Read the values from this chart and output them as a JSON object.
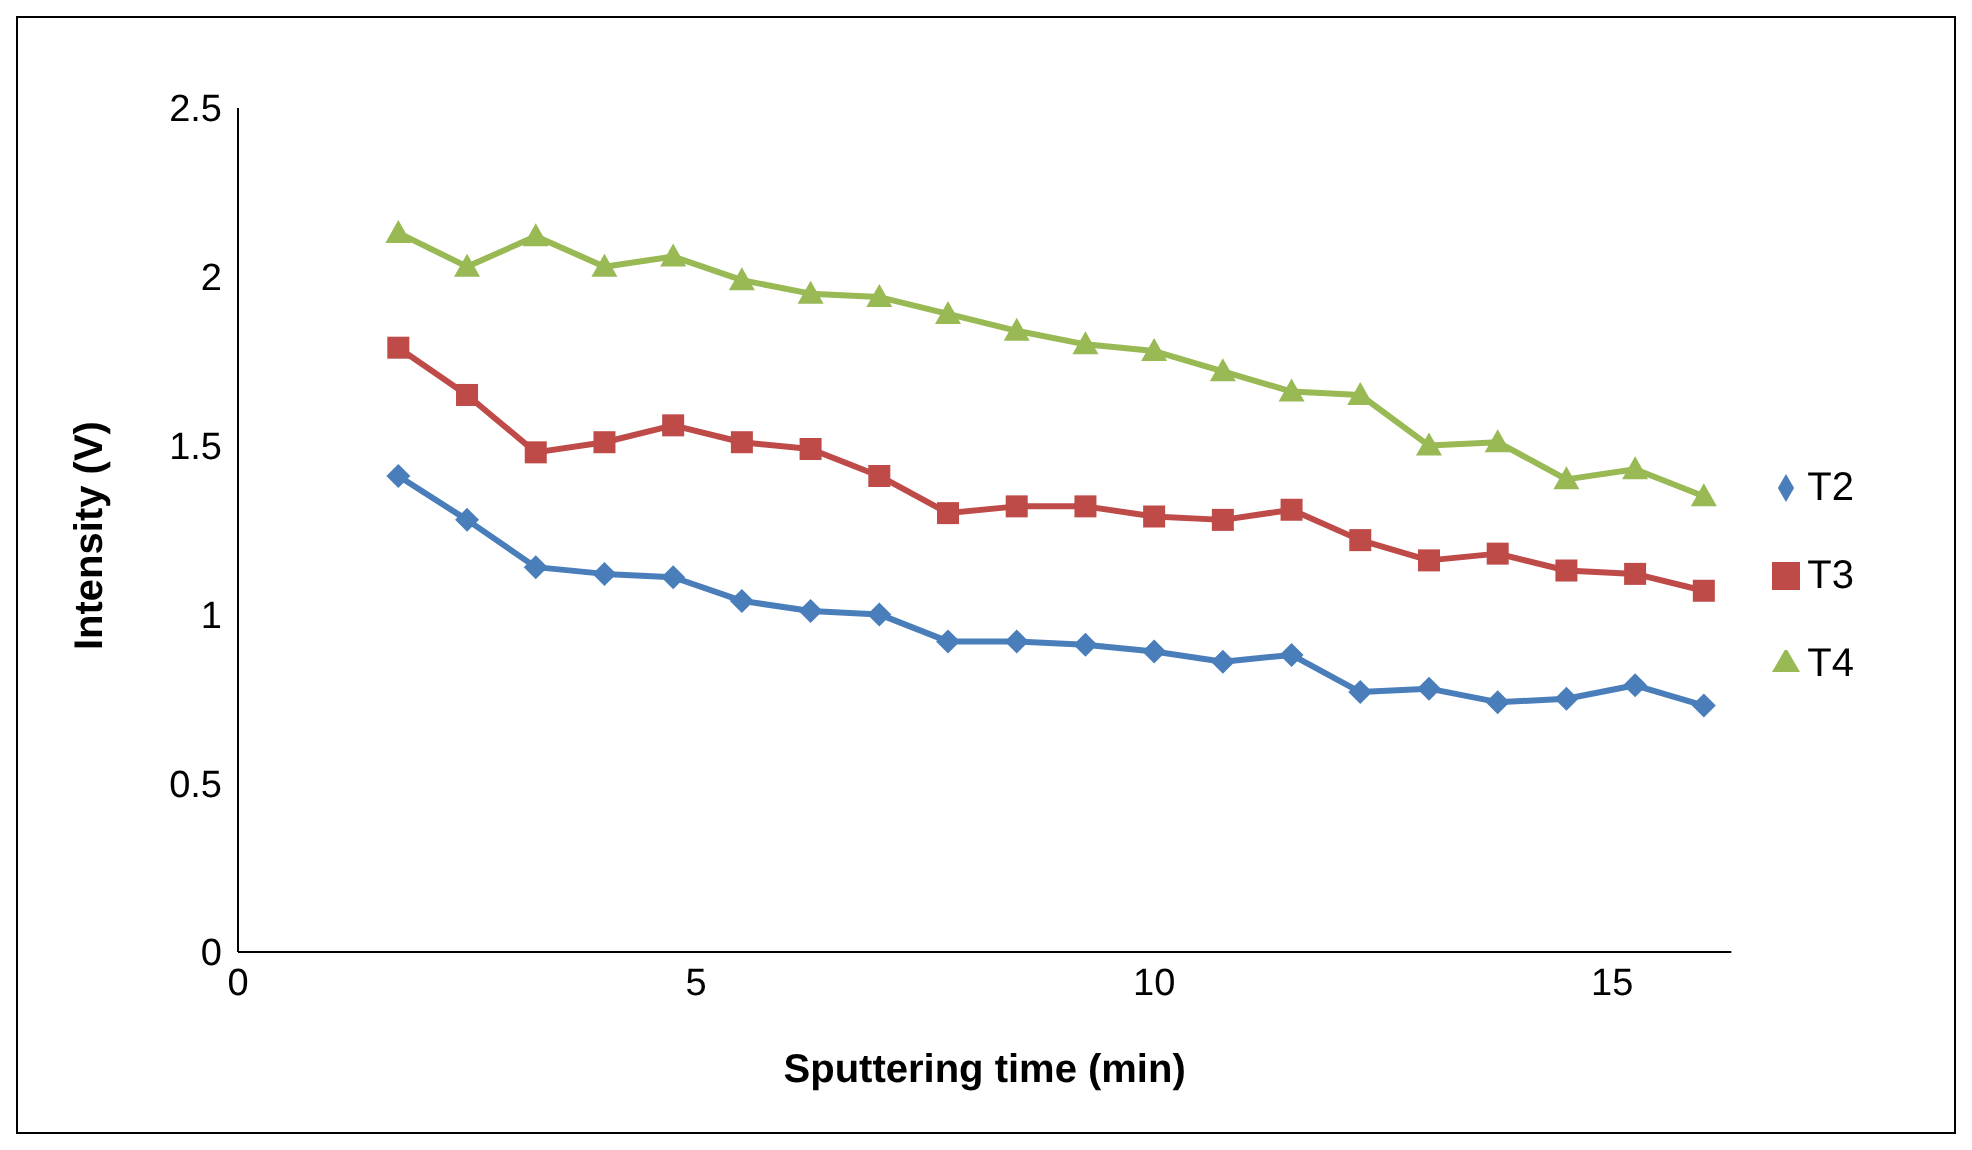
{
  "chart_data": {
    "type": "line",
    "xlabel": "Sputtering time (min)",
    "ylabel": "Intensity (V)",
    "x": [
      1.75,
      2.5,
      3.25,
      4,
      4.75,
      5.5,
      6.25,
      7,
      7.75,
      8.5,
      9.25,
      10,
      10.75,
      11.5,
      12.25,
      13,
      13.75,
      14.5,
      15.25,
      16
    ],
    "series": [
      {
        "name": "T2",
        "color": "#4a7ebb",
        "marker": "diamond",
        "values": [
          1.41,
          1.28,
          1.14,
          1.12,
          1.11,
          1.04,
          1.01,
          1.0,
          0.92,
          0.92,
          0.91,
          0.89,
          0.86,
          0.88,
          0.77,
          0.78,
          0.74,
          0.75,
          0.79,
          0.73
        ]
      },
      {
        "name": "T3",
        "color": "#be4b48",
        "marker": "square",
        "values": [
          1.79,
          1.65,
          1.48,
          1.51,
          1.56,
          1.51,
          1.49,
          1.41,
          1.3,
          1.32,
          1.32,
          1.29,
          1.28,
          1.31,
          1.22,
          1.16,
          1.18,
          1.13,
          1.12,
          1.07
        ]
      },
      {
        "name": "T4",
        "color": "#98b954",
        "marker": "triangle",
        "values": [
          2.13,
          2.03,
          2.12,
          2.03,
          2.06,
          1.99,
          1.95,
          1.94,
          1.89,
          1.84,
          1.8,
          1.78,
          1.72,
          1.66,
          1.65,
          1.5,
          1.51,
          1.4,
          1.43,
          1.35
        ]
      }
    ],
    "xlim": [
      0,
      16.3
    ],
    "xticks": [
      0,
      5,
      10,
      15
    ],
    "ylim": [
      0,
      2.5
    ],
    "yticks": [
      0,
      0.5,
      1,
      1.5,
      2,
      2.5
    ],
    "grid": false,
    "legend": "right",
    "line_style": "solid"
  }
}
